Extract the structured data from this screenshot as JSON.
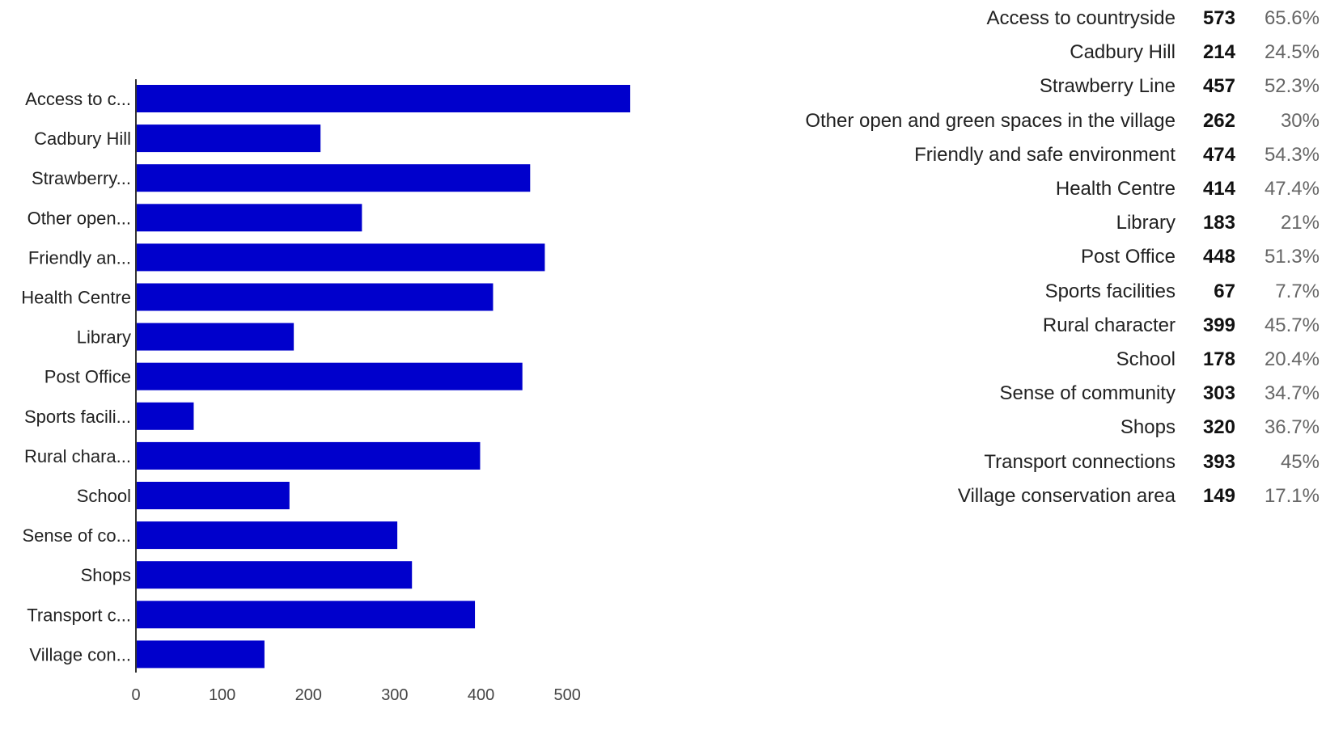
{
  "colors": {
    "bar": "#0000cc",
    "axis": "#333333",
    "text": "#222222",
    "percent_text": "#666666"
  },
  "chart_data": {
    "type": "bar",
    "orientation": "horizontal",
    "categories": [
      "Access to c...",
      "Cadbury Hill",
      "Strawberry...",
      "Other open...",
      "Friendly an...",
      "Health Centre",
      "Library",
      "Post Office",
      "Sports facili...",
      "Rural chara...",
      "School",
      "Sense of co...",
      "Shops",
      "Transport c...",
      "Village con..."
    ],
    "values": [
      573,
      214,
      457,
      262,
      474,
      414,
      183,
      448,
      67,
      399,
      178,
      303,
      320,
      393,
      149
    ],
    "xlim": [
      0,
      575
    ],
    "x_ticks": [
      0,
      100,
      200,
      300,
      400,
      500
    ],
    "grid": false,
    "legend": "none",
    "title": "",
    "xlabel": "",
    "ylabel": ""
  },
  "summary": {
    "rows": [
      {
        "label": "Access to countryside",
        "count": "573",
        "percent": "65.6%"
      },
      {
        "label": "Cadbury Hill",
        "count": "214",
        "percent": "24.5%"
      },
      {
        "label": "Strawberry Line",
        "count": "457",
        "percent": "52.3%"
      },
      {
        "label": "Other open and green spaces in the village",
        "count": "262",
        "percent": "30%"
      },
      {
        "label": "Friendly and safe environment",
        "count": "474",
        "percent": "54.3%"
      },
      {
        "label": "Health Centre",
        "count": "414",
        "percent": "47.4%"
      },
      {
        "label": "Library",
        "count": "183",
        "percent": "21%"
      },
      {
        "label": "Post Office",
        "count": "448",
        "percent": "51.3%"
      },
      {
        "label": "Sports facilities",
        "count": "67",
        "percent": "7.7%"
      },
      {
        "label": "Rural character",
        "count": "399",
        "percent": "45.7%"
      },
      {
        "label": "School",
        "count": "178",
        "percent": "20.4%"
      },
      {
        "label": "Sense of community",
        "count": "303",
        "percent": "34.7%"
      },
      {
        "label": "Shops",
        "count": "320",
        "percent": "36.7%"
      },
      {
        "label": "Transport connections",
        "count": "393",
        "percent": "45%"
      },
      {
        "label": "Village conservation area",
        "count": "149",
        "percent": "17.1%"
      }
    ]
  }
}
